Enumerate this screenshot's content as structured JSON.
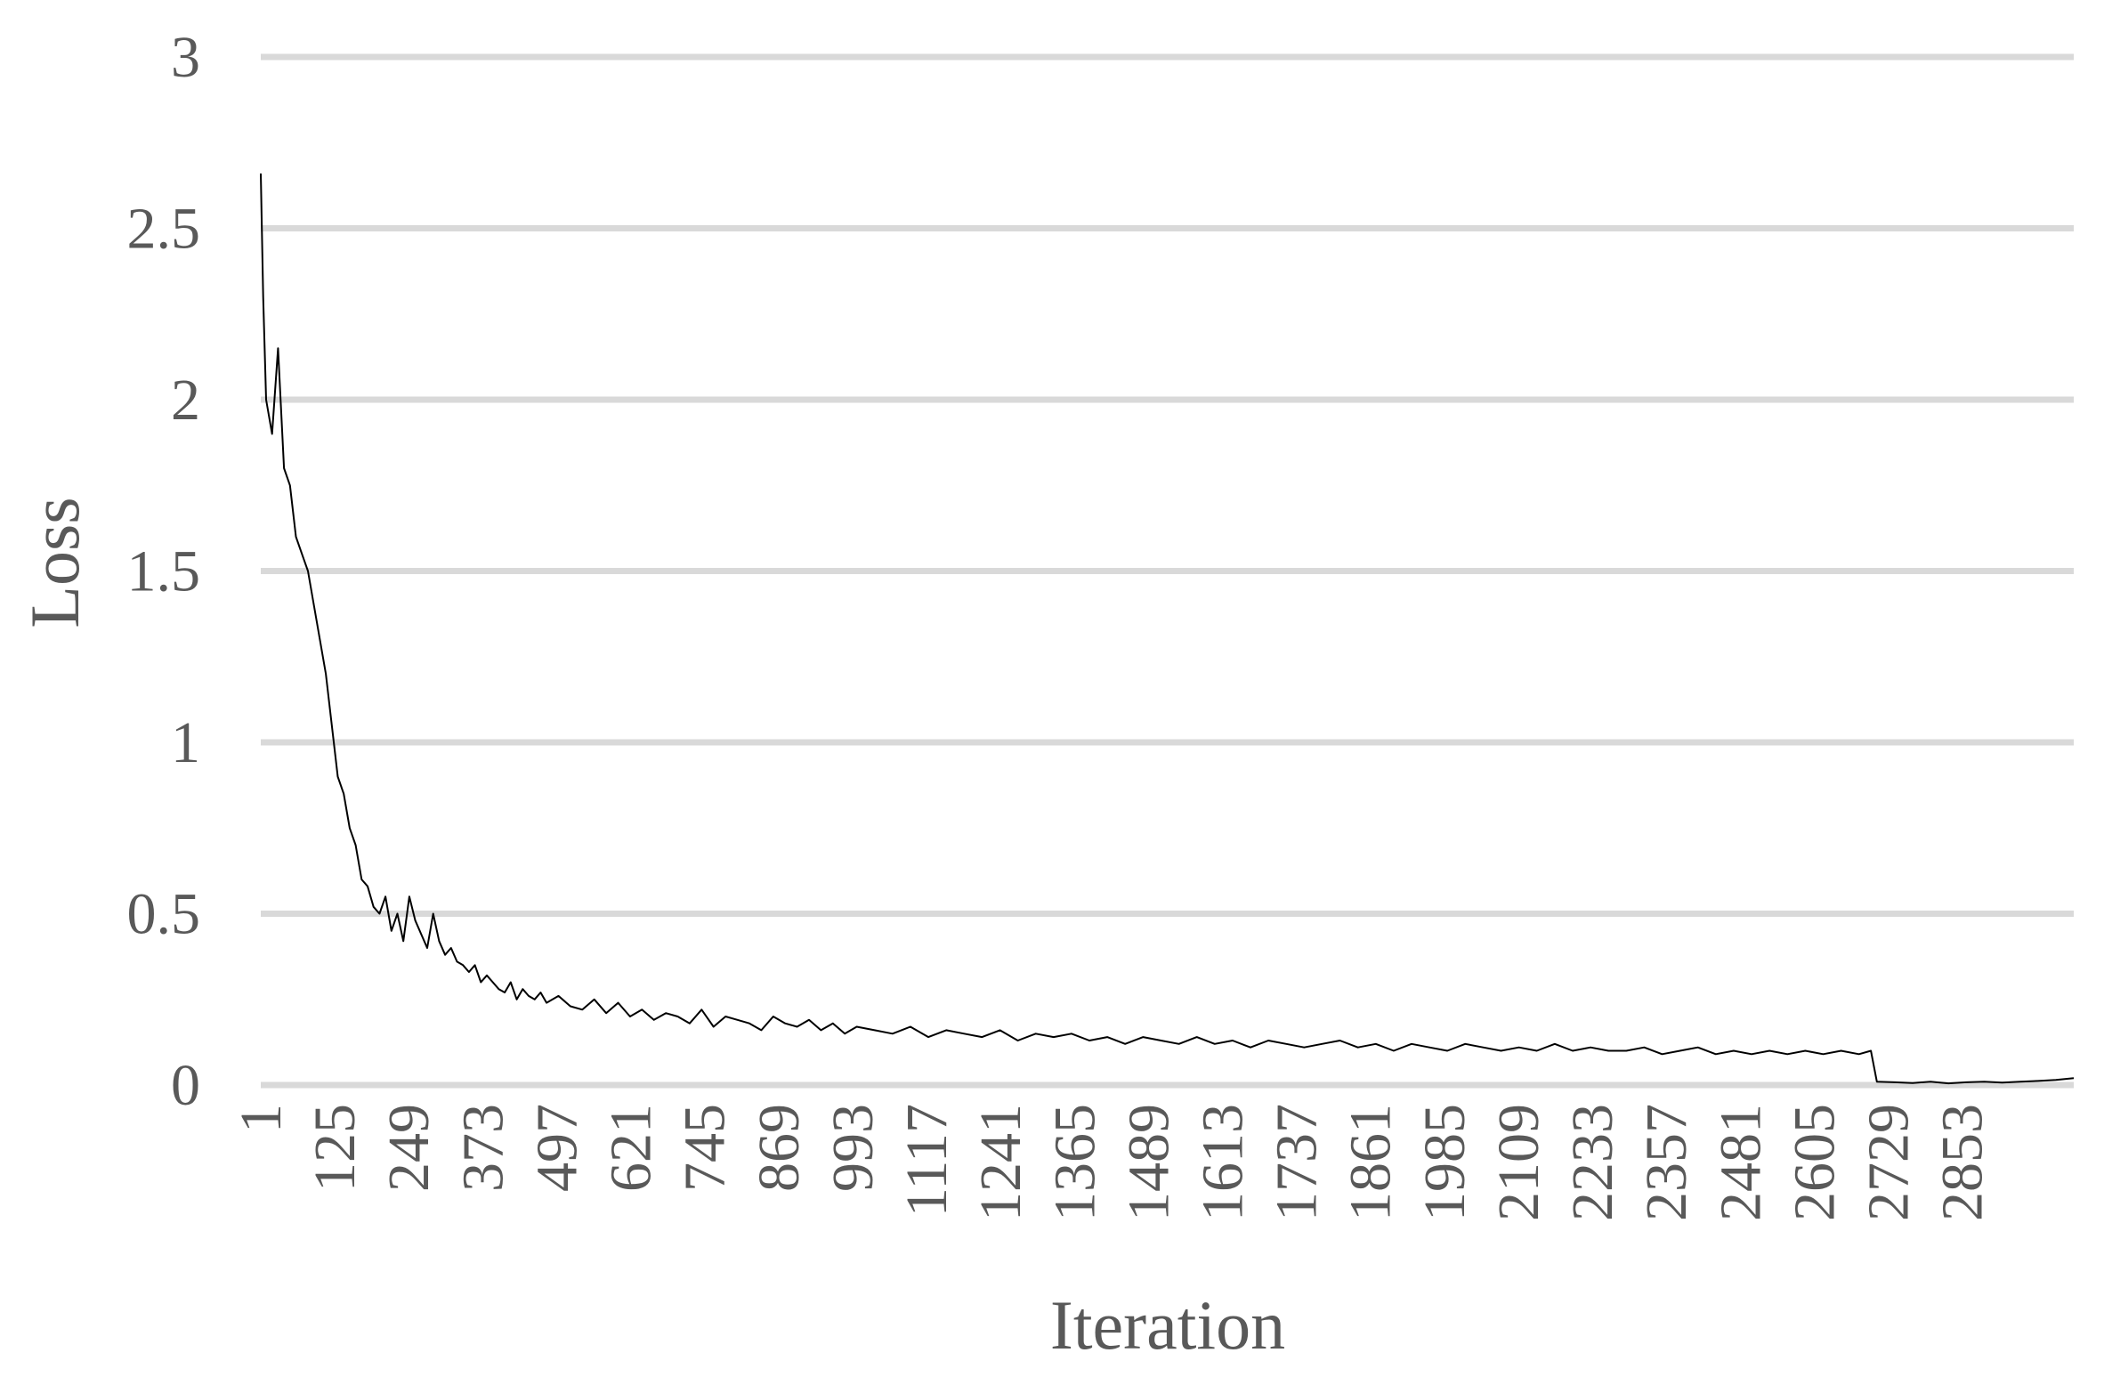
{
  "chart_data": {
    "type": "line",
    "title": "",
    "xlabel": "Iteration",
    "ylabel": "Loss",
    "ylim": [
      0,
      3
    ],
    "yticks": [
      0,
      0.5,
      1,
      1.5,
      2,
      2.5,
      3
    ],
    "ytick_labels": [
      "0",
      "0.5",
      "1",
      "1.5",
      "2",
      "2.5",
      "3"
    ],
    "xlim": [
      1,
      3040
    ],
    "xticks": [
      1,
      125,
      249,
      373,
      497,
      621,
      745,
      869,
      993,
      1117,
      1241,
      1365,
      1489,
      1613,
      1737,
      1861,
      1985,
      2109,
      2233,
      2357,
      2481,
      2605,
      2729,
      2853
    ],
    "xtick_labels": [
      "1",
      "125",
      "249",
      "373",
      "497",
      "621",
      "745",
      "869",
      "993",
      "1117",
      "1241",
      "1365",
      "1489",
      "1613",
      "1737",
      "1861",
      "1985",
      "2109",
      "2233",
      "2357",
      "2481",
      "2605",
      "2729",
      "2853"
    ],
    "grid": true,
    "legend": "none",
    "series_color": "#000000",
    "grid_color": "#d9d9d9",
    "series": [
      {
        "x": [
          1,
          5,
          10,
          20,
          30,
          40,
          50,
          60,
          70,
          80,
          90,
          100,
          110,
          120,
          130,
          140,
          150,
          160,
          170,
          180,
          190,
          200,
          210,
          220,
          230,
          240,
          250,
          260,
          270,
          280,
          290,
          300,
          310,
          320,
          330,
          340,
          350,
          360,
          370,
          380,
          390,
          400,
          410,
          420,
          430,
          440,
          450,
          460,
          470,
          480,
          490,
          500,
          520,
          540,
          560,
          580,
          600,
          620,
          640,
          660,
          680,
          700,
          720,
          740,
          760,
          780,
          800,
          820,
          840,
          860,
          880,
          900,
          920,
          940,
          960,
          980,
          1000,
          1030,
          1060,
          1090,
          1120,
          1150,
          1180,
          1210,
          1240,
          1270,
          1300,
          1330,
          1360,
          1390,
          1420,
          1450,
          1480,
          1510,
          1540,
          1570,
          1600,
          1630,
          1660,
          1690,
          1720,
          1750,
          1780,
          1810,
          1840,
          1870,
          1900,
          1930,
          1960,
          1990,
          2020,
          2050,
          2080,
          2110,
          2140,
          2170,
          2200,
          2230,
          2260,
          2290,
          2320,
          2350,
          2380,
          2410,
          2440,
          2470,
          2500,
          2530,
          2560,
          2590,
          2620,
          2650,
          2680,
          2700,
          2710,
          2740,
          2770,
          2800,
          2830,
          2860,
          2890,
          2920,
          2950,
          2980,
          3010,
          3040
        ],
        "y": [
          2.66,
          2.3,
          2.0,
          1.9,
          2.15,
          1.8,
          1.75,
          1.6,
          1.55,
          1.5,
          1.4,
          1.3,
          1.2,
          1.05,
          0.9,
          0.85,
          0.75,
          0.7,
          0.6,
          0.58,
          0.52,
          0.5,
          0.55,
          0.45,
          0.5,
          0.42,
          0.55,
          0.48,
          0.44,
          0.4,
          0.5,
          0.42,
          0.38,
          0.4,
          0.36,
          0.35,
          0.33,
          0.35,
          0.3,
          0.32,
          0.3,
          0.28,
          0.27,
          0.3,
          0.25,
          0.28,
          0.26,
          0.25,
          0.27,
          0.24,
          0.25,
          0.26,
          0.23,
          0.22,
          0.25,
          0.21,
          0.24,
          0.2,
          0.22,
          0.19,
          0.21,
          0.2,
          0.18,
          0.22,
          0.17,
          0.2,
          0.19,
          0.18,
          0.16,
          0.2,
          0.18,
          0.17,
          0.19,
          0.16,
          0.18,
          0.15,
          0.17,
          0.16,
          0.15,
          0.17,
          0.14,
          0.16,
          0.15,
          0.14,
          0.16,
          0.13,
          0.15,
          0.14,
          0.15,
          0.13,
          0.14,
          0.12,
          0.14,
          0.13,
          0.12,
          0.14,
          0.12,
          0.13,
          0.11,
          0.13,
          0.12,
          0.11,
          0.12,
          0.13,
          0.11,
          0.12,
          0.1,
          0.12,
          0.11,
          0.1,
          0.12,
          0.11,
          0.1,
          0.11,
          0.1,
          0.12,
          0.1,
          0.11,
          0.1,
          0.1,
          0.11,
          0.09,
          0.1,
          0.11,
          0.09,
          0.1,
          0.09,
          0.1,
          0.09,
          0.1,
          0.09,
          0.1,
          0.09,
          0.1,
          0.01,
          0.008,
          0.006,
          0.01,
          0.005,
          0.008,
          0.01,
          0.007,
          0.01,
          0.012,
          0.015,
          0.02
        ]
      }
    ]
  }
}
